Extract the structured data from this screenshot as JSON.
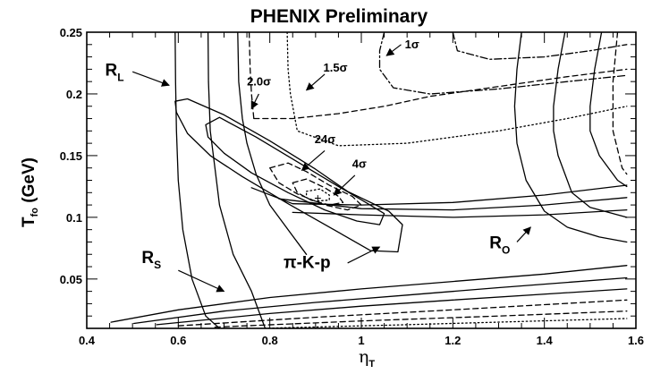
{
  "chart_data": {
    "type": "line",
    "title": "PHENIX Preliminary",
    "xlabel": {
      "main": "η",
      "sub": "T"
    },
    "ylabel": {
      "main": "T",
      "sub": "fo",
      "unit": " (GeV)"
    },
    "xlim": [
      0.4,
      1.6
    ],
    "ylim": [
      0.01,
      0.25
    ],
    "x_ticks": [
      "0.4",
      "0.6",
      "0.8",
      "1",
      "1.2",
      "1.4",
      "1.6"
    ],
    "y_ticks": [
      "0.05",
      "0.1",
      "0.15",
      "0.2",
      "0.25"
    ],
    "grid": false,
    "annotations": [
      {
        "id": "rl",
        "main": "R",
        "sub": "L",
        "x": 0.44,
        "y": 0.215,
        "size": "big",
        "arrow": [
          [
            0.5,
            0.218
          ],
          [
            0.58,
            0.207
          ]
        ]
      },
      {
        "id": "rs",
        "main": "R",
        "sub": "S",
        "x": 0.52,
        "y": 0.063,
        "size": "big",
        "arrow": [
          [
            0.6,
            0.057
          ],
          [
            0.7,
            0.04
          ]
        ]
      },
      {
        "id": "ro",
        "main": "R",
        "sub": "O",
        "x": 1.28,
        "y": 0.075,
        "size": "big",
        "arrow": [
          [
            1.34,
            0.08
          ],
          [
            1.37,
            0.092
          ]
        ]
      },
      {
        "id": "pikp",
        "main": "π-K-p",
        "x": 0.83,
        "y": 0.059,
        "size": "big",
        "arrow": [
          [
            0.97,
            0.063
          ],
          [
            1.04,
            0.076
          ]
        ]
      },
      {
        "id": "s24",
        "main": "24σ",
        "x": 0.898,
        "y": 0.16,
        "size": "small",
        "arrow": [
          [
            0.92,
            0.154
          ],
          [
            0.87,
            0.138
          ]
        ]
      },
      {
        "id": "s4",
        "main": "4σ",
        "x": 0.98,
        "y": 0.14,
        "size": "small",
        "arrow": [
          [
            0.986,
            0.134
          ],
          [
            0.94,
            0.118
          ]
        ]
      },
      {
        "id": "s20",
        "main": "2.0σ",
        "x": 0.75,
        "y": 0.207,
        "size": "small",
        "arrow": [
          [
            0.776,
            0.2
          ],
          [
            0.76,
            0.188
          ]
        ]
      },
      {
        "id": "s15",
        "main": "1.5σ",
        "x": 0.917,
        "y": 0.218,
        "size": "small",
        "arrow": [
          [
            0.92,
            0.216
          ],
          [
            0.88,
            0.203
          ]
        ]
      },
      {
        "id": "s1",
        "main": "1σ",
        "x": 1.095,
        "y": 0.237,
        "size": "small",
        "arrow": [
          [
            1.087,
            0.24
          ],
          [
            1.055,
            0.231
          ]
        ]
      }
    ],
    "series": [
      {
        "style": "solid",
        "points": [
          [
            0.453,
            0.015
          ],
          [
            0.6,
            0.025
          ],
          [
            0.8,
            0.035
          ],
          [
            1.0,
            0.042
          ],
          [
            1.2,
            0.048
          ],
          [
            1.4,
            0.054
          ],
          [
            1.58,
            0.061
          ]
        ]
      },
      {
        "style": "solid",
        "points": [
          [
            0.503,
            0.014
          ],
          [
            0.7,
            0.024
          ],
          [
            0.9,
            0.031
          ],
          [
            1.1,
            0.037
          ],
          [
            1.3,
            0.043
          ],
          [
            1.58,
            0.051
          ]
        ]
      },
      {
        "style": "solid",
        "points": [
          [
            0.553,
            0.013
          ],
          [
            0.8,
            0.022
          ],
          [
            1.0,
            0.028
          ],
          [
            1.2,
            0.033
          ],
          [
            1.58,
            0.042
          ]
        ]
      },
      {
        "style": "dashed",
        "points": [
          [
            0.6,
            0.012
          ],
          [
            0.9,
            0.019
          ],
          [
            1.2,
            0.025
          ],
          [
            1.58,
            0.033
          ]
        ]
      },
      {
        "style": "dashed",
        "points": [
          [
            0.68,
            0.011
          ],
          [
            1.0,
            0.016
          ],
          [
            1.3,
            0.02
          ],
          [
            1.58,
            0.024
          ]
        ]
      },
      {
        "style": "dotted",
        "points": [
          [
            0.78,
            0.01
          ],
          [
            1.1,
            0.013
          ],
          [
            1.58,
            0.018
          ]
        ]
      },
      {
        "style": "solid",
        "points": [
          [
            0.593,
            0.25
          ],
          [
            0.594,
            0.21
          ],
          [
            0.596,
            0.17
          ],
          [
            0.6,
            0.13
          ],
          [
            0.61,
            0.09
          ],
          [
            0.63,
            0.05
          ],
          [
            0.66,
            0.02
          ],
          [
            0.69,
            0.01
          ]
        ]
      },
      {
        "style": "solid",
        "points": [
          [
            0.665,
            0.25
          ],
          [
            0.666,
            0.21
          ],
          [
            0.67,
            0.17
          ],
          [
            0.68,
            0.14
          ],
          [
            0.69,
            0.11
          ],
          [
            0.72,
            0.07
          ],
          [
            0.76,
            0.04
          ],
          [
            0.79,
            0.01
          ]
        ]
      },
      {
        "style": "solid",
        "points": [
          [
            0.73,
            0.25
          ],
          [
            0.732,
            0.21
          ],
          [
            0.74,
            0.18
          ],
          [
            0.75,
            0.16
          ],
          [
            0.77,
            0.135
          ],
          [
            0.8,
            0.11
          ],
          [
            0.84,
            0.09
          ],
          [
            0.88,
            0.07
          ]
        ]
      },
      {
        "style": "solid",
        "points": [
          [
            0.76,
            0.124
          ],
          [
            0.85,
            0.111
          ],
          [
            1.0,
            0.11
          ],
          [
            1.2,
            0.112
          ],
          [
            1.4,
            0.118
          ],
          [
            1.58,
            0.126
          ]
        ]
      },
      {
        "style": "solid",
        "points": [
          [
            0.82,
            0.115
          ],
          [
            1.0,
            0.107
          ],
          [
            1.2,
            0.106
          ],
          [
            1.4,
            0.11
          ],
          [
            1.58,
            0.116
          ]
        ]
      },
      {
        "style": "solid",
        "points": [
          [
            0.85,
            0.104
          ],
          [
            1.0,
            0.102
          ],
          [
            1.2,
            0.1
          ],
          [
            1.4,
            0.102
          ],
          [
            1.58,
            0.106
          ]
        ]
      },
      {
        "style": "solid",
        "points": [
          [
            1.35,
            0.25
          ],
          [
            1.34,
            0.22
          ],
          [
            1.335,
            0.19
          ],
          [
            1.34,
            0.16
          ],
          [
            1.36,
            0.13
          ],
          [
            1.4,
            0.105
          ],
          [
            1.45,
            0.092
          ],
          [
            1.52,
            0.084
          ],
          [
            1.58,
            0.08
          ]
        ]
      },
      {
        "style": "solid",
        "points": [
          [
            1.445,
            0.25
          ],
          [
            1.43,
            0.22
          ],
          [
            1.42,
            0.19
          ],
          [
            1.42,
            0.17
          ],
          [
            1.43,
            0.15
          ],
          [
            1.46,
            0.12
          ],
          [
            1.5,
            0.108
          ],
          [
            1.58,
            0.1
          ]
        ]
      },
      {
        "style": "solid",
        "points": [
          [
            1.525,
            0.25
          ],
          [
            1.51,
            0.22
          ],
          [
            1.5,
            0.19
          ],
          [
            1.5,
            0.17
          ],
          [
            1.52,
            0.15
          ],
          [
            1.56,
            0.13
          ],
          [
            1.58,
            0.125
          ]
        ]
      },
      {
        "style": "dashed",
        "points": [
          [
            1.56,
            0.25
          ],
          [
            1.55,
            0.21
          ],
          [
            1.55,
            0.17
          ],
          [
            1.57,
            0.14
          ],
          [
            1.58,
            0.135
          ]
        ]
      },
      {
        "style": "dashed",
        "points": [
          [
            0.755,
            0.25
          ],
          [
            0.757,
            0.22
          ],
          [
            0.76,
            0.2
          ],
          [
            0.765,
            0.18
          ]
        ]
      },
      {
        "style": "dashed",
        "points": [
          [
            0.765,
            0.18
          ],
          [
            0.85,
            0.18
          ],
          [
            0.95,
            0.184
          ],
          [
            1.05,
            0.19
          ],
          [
            1.15,
            0.198
          ],
          [
            1.3,
            0.206
          ],
          [
            1.45,
            0.214
          ],
          [
            1.58,
            0.22
          ]
        ]
      },
      {
        "style": "dotted",
        "points": [
          [
            0.838,
            0.25
          ],
          [
            0.84,
            0.22
          ],
          [
            0.845,
            0.2
          ],
          [
            0.86,
            0.17
          ],
          [
            0.95,
            0.158
          ],
          [
            1.1,
            0.16
          ],
          [
            1.3,
            0.17
          ],
          [
            1.45,
            0.18
          ],
          [
            1.58,
            0.19
          ]
        ]
      },
      {
        "style": "dashdot",
        "points": [
          [
            1.05,
            0.25
          ],
          [
            1.04,
            0.235
          ],
          [
            1.04,
            0.22
          ],
          [
            1.07,
            0.205
          ],
          [
            1.15,
            0.2
          ],
          [
            1.3,
            0.204
          ],
          [
            1.45,
            0.21
          ],
          [
            1.58,
            0.215
          ]
        ]
      },
      {
        "style": "dashdot",
        "points": [
          [
            1.2,
            0.25
          ],
          [
            1.21,
            0.235
          ],
          [
            1.28,
            0.228
          ],
          [
            1.4,
            0.23
          ],
          [
            1.5,
            0.235
          ],
          [
            1.58,
            0.24
          ]
        ]
      },
      {
        "style": "solid",
        "closed": true,
        "points": [
          [
            0.593,
            0.194
          ],
          [
            0.62,
            0.196
          ],
          [
            0.7,
            0.183
          ],
          [
            0.8,
            0.162
          ],
          [
            0.9,
            0.139
          ],
          [
            0.97,
            0.121
          ],
          [
            1.06,
            0.105
          ],
          [
            1.09,
            0.094
          ],
          [
            1.08,
            0.072
          ],
          [
            1.02,
            0.073
          ],
          [
            0.94,
            0.09
          ],
          [
            0.84,
            0.111
          ],
          [
            0.74,
            0.133
          ],
          [
            0.67,
            0.15
          ],
          [
            0.62,
            0.168
          ],
          [
            0.596,
            0.185
          ]
        ]
      },
      {
        "style": "solid",
        "closed": true,
        "points": [
          [
            0.66,
            0.175
          ],
          [
            0.69,
            0.181
          ],
          [
            0.77,
            0.165
          ],
          [
            0.86,
            0.145
          ],
          [
            0.95,
            0.125
          ],
          [
            1.01,
            0.112
          ],
          [
            1.05,
            0.103
          ],
          [
            1.04,
            0.094
          ],
          [
            0.99,
            0.097
          ],
          [
            0.92,
            0.106
          ],
          [
            0.84,
            0.12
          ],
          [
            0.76,
            0.136
          ],
          [
            0.7,
            0.152
          ],
          [
            0.665,
            0.165
          ]
        ]
      },
      {
        "style": "dashed",
        "closed": true,
        "points": [
          [
            0.8,
            0.14
          ],
          [
            0.84,
            0.144
          ],
          [
            0.88,
            0.137
          ],
          [
            0.93,
            0.126
          ],
          [
            0.98,
            0.117
          ],
          [
            1.0,
            0.11
          ],
          [
            0.97,
            0.106
          ],
          [
            0.92,
            0.11
          ],
          [
            0.86,
            0.119
          ],
          [
            0.82,
            0.128
          ]
        ]
      },
      {
        "style": "dashed",
        "closed": true,
        "points": [
          [
            0.85,
            0.128
          ],
          [
            0.88,
            0.131
          ],
          [
            0.92,
            0.124
          ],
          [
            0.95,
            0.117
          ],
          [
            0.96,
            0.112
          ],
          [
            0.93,
            0.11
          ],
          [
            0.89,
            0.114
          ],
          [
            0.86,
            0.12
          ]
        ]
      },
      {
        "style": "dotted",
        "closed": true,
        "points": [
          [
            0.88,
            0.121
          ],
          [
            0.91,
            0.123
          ],
          [
            0.93,
            0.118
          ],
          [
            0.93,
            0.114
          ],
          [
            0.9,
            0.113
          ],
          [
            0.88,
            0.116
          ]
        ]
      }
    ],
    "marker": {
      "symbol": "+",
      "x": 0.905,
      "y": 0.116
    }
  }
}
